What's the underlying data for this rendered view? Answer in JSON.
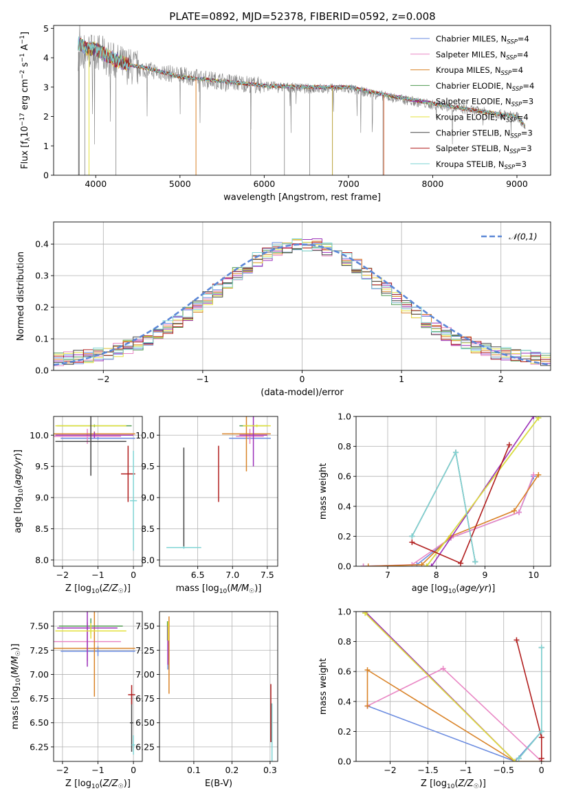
{
  "figure_title": "PLATE=0892, MJD=52378, FIBERID=0592, z=0.008",
  "models": [
    {
      "key": "chab_miles",
      "label": "Chabrier MILES, N",
      "sub": "SSP",
      "suffix": "=4",
      "color": "#6a8be0"
    },
    {
      "key": "salp_miles",
      "label": "Salpeter MILES, N",
      "sub": "SSP",
      "suffix": "=4",
      "color": "#e986c4"
    },
    {
      "key": "krou_miles",
      "label": "Kroupa MILES, N",
      "sub": "SSP",
      "suffix": "=4",
      "color": "#d98226"
    },
    {
      "key": "chab_elodie",
      "label": "Chabrier ELODIE, N",
      "sub": "SSP",
      "suffix": "=4",
      "color": "#4f9a50"
    },
    {
      "key": "salp_elodie",
      "label": "Salpeter ELODIE, N",
      "sub": "SSP",
      "suffix": "=3",
      "color": "#9a2fb8"
    },
    {
      "key": "krou_elodie",
      "label": "Kroupa ELODIE, N",
      "sub": "SSP",
      "suffix": "=4",
      "color": "#e3e13a"
    },
    {
      "key": "chab_stelib",
      "label": "Chabrier STELIB, N",
      "sub": "SSP",
      "suffix": "=3",
      "color": "#444444"
    },
    {
      "key": "salp_stelib",
      "label": "Salpeter STELIB, N",
      "sub": "SSP",
      "suffix": "=3",
      "color": "#b01c1c"
    },
    {
      "key": "krou_stelib",
      "label": "Kroupa STELIB, N",
      "sub": "SSP",
      "suffix": "=3",
      "color": "#7fd4d4"
    }
  ],
  "chart_data": [
    {
      "id": "spectrum",
      "type": "line",
      "xlabel": "wavelength [Angstrom, rest frame]",
      "ylabel": "Flux [f_λ 10^-17 erg cm^-2 s^-1 A^-1]",
      "xlim": [
        3500,
        9400
      ],
      "ylim": [
        0,
        5.1
      ],
      "xticks": [
        4000,
        5000,
        6000,
        7000,
        8000,
        9000
      ],
      "yticks": [
        0,
        1,
        2,
        3,
        4,
        5
      ],
      "data_color": "#808080",
      "data_continuum": {
        "x": [
          3800,
          4000,
          4200,
          4400,
          4600,
          5000,
          5500,
          6000,
          6500,
          7000,
          7500,
          8000,
          8500,
          9000,
          9100
        ],
        "y": [
          4.2,
          4.25,
          3.9,
          3.7,
          3.6,
          3.4,
          3.2,
          3.05,
          2.95,
          2.95,
          2.65,
          2.4,
          2.2,
          2.0,
          1.7
        ]
      },
      "model_continuum": {
        "x": [
          3790,
          3900,
          4000,
          4200,
          4400,
          4600,
          5000,
          5500,
          6000,
          6500,
          7000,
          7500,
          8000,
          8500,
          9000,
          9100
        ],
        "y": [
          4.5,
          4.3,
          4.3,
          3.95,
          3.75,
          3.65,
          3.35,
          3.2,
          3.05,
          3.0,
          3.0,
          2.7,
          2.45,
          2.2,
          2.0,
          1.7
        ]
      },
      "grid": false
    },
    {
      "id": "residuals",
      "type": "histogram",
      "xlabel": "(data-model)/error",
      "ylabel": "Normed distribution",
      "xlim": [
        -2.5,
        2.5
      ],
      "ylim": [
        0,
        0.47
      ],
      "xticks": [
        -2,
        -1,
        0,
        1,
        2
      ],
      "yticks": [
        0.0,
        0.1,
        0.2,
        0.3,
        0.4
      ],
      "bin_width": 0.1,
      "legend": {
        "label": "𝒩(0,1)",
        "color": "#5b87d6",
        "position": "top-right"
      },
      "grid": true
    },
    {
      "id": "age_vs_Z",
      "type": "errorbar",
      "xlabel": "Z [log₁₀(Z/Z☉)]",
      "ylabel": "age  [log₁₀(age/yr)]",
      "xlim": [
        -2.25,
        0.25
      ],
      "ylim": [
        7.9,
        10.3
      ],
      "xticks": [
        -2,
        -1,
        0
      ],
      "yticks": [
        8.0,
        8.5,
        9.0,
        9.5,
        10.0
      ],
      "grid": true,
      "points": [
        {
          "model": "chab_miles",
          "x": -1.0,
          "xerr": 1.05,
          "y": 9.95,
          "yerr": 0.02
        },
        {
          "model": "salp_miles",
          "x": -1.3,
          "xerr": 0.95,
          "y": 9.98,
          "yerr": 0.12
        },
        {
          "model": "krou_miles",
          "x": -1.1,
          "xerr": 1.15,
          "y": 10.02,
          "yerr": 0.04
        },
        {
          "model": "chab_elodie",
          "x": -1.1,
          "xerr": 1.05,
          "y": 10.15,
          "yerr": 0.02
        },
        {
          "model": "salp_elodie",
          "x": -1.1,
          "xerr": 1.1,
          "y": 10.0,
          "yerr": 0.05
        },
        {
          "model": "krou_elodie",
          "x": -1.2,
          "xerr": 1.0,
          "y": 10.15,
          "yerr": 0.02
        },
        {
          "model": "chab_stelib",
          "x": -1.2,
          "xerr": 1.0,
          "y": 9.9,
          "yerr": 0.55
        },
        {
          "model": "salp_stelib",
          "x": -0.15,
          "xerr": 0.2,
          "y": 9.38,
          "yerr": 0.45
        },
        {
          "model": "krou_stelib",
          "x": 0.0,
          "xerr": 0.1,
          "y": 8.95,
          "yerr": 0.8
        }
      ]
    },
    {
      "id": "age_vs_mass",
      "type": "errorbar",
      "xlabel": "mass [log₁₀(M/M☉)]",
      "ylabel": "",
      "xlim": [
        5.95,
        7.65
      ],
      "ylim": [
        7.9,
        10.3
      ],
      "xticks": [
        6.5,
        7.0,
        7.5
      ],
      "yticks": [
        8.0,
        8.5,
        9.0,
        9.5,
        10.0
      ],
      "grid": true,
      "points": [
        {
          "model": "chab_miles",
          "x": 7.25,
          "xerr": 0.3,
          "y": 9.95,
          "yerr": 0.02
        },
        {
          "model": "salp_miles",
          "x": 7.25,
          "xerr": 0.2,
          "y": 9.98,
          "yerr": 0.12
        },
        {
          "model": "krou_miles",
          "x": 7.2,
          "xerr": 0.35,
          "y": 10.02,
          "yerr": 0.6
        },
        {
          "model": "chab_elodie",
          "x": 7.3,
          "xerr": 0.2,
          "y": 10.15,
          "yerr": 0.02
        },
        {
          "model": "salp_elodie",
          "x": 7.3,
          "xerr": 0.2,
          "y": 10.0,
          "yerr": 0.5
        },
        {
          "model": "krou_elodie",
          "x": 7.35,
          "xerr": 0.2,
          "y": 10.15,
          "yerr": 0.02
        },
        {
          "model": "chab_stelib",
          "x": 6.3,
          "xerr": 0.0,
          "y": 9.0,
          "yerr": 0.8
        },
        {
          "model": "salp_stelib",
          "x": 6.8,
          "xerr": 0.0,
          "y": 9.38,
          "yerr": 0.45
        },
        {
          "model": "krou_stelib",
          "x": 6.3,
          "xerr": 0.25,
          "y": 8.2,
          "yerr": 0.02
        }
      ]
    },
    {
      "id": "weight_vs_age",
      "type": "line",
      "xlabel": "age  [log₁₀(age/yr)]",
      "ylabel": "mass weight",
      "xlim": [
        6.35,
        10.35
      ],
      "ylim": [
        0,
        1
      ],
      "xticks": [
        7,
        8,
        9,
        10
      ],
      "yticks": [
        0.0,
        0.2,
        0.4,
        0.6,
        0.8,
        1.0
      ],
      "grid": true,
      "series": [
        {
          "model": "chab_miles",
          "x": [
            6.5,
            7.6,
            8.3,
            9.7,
            10.0
          ],
          "y": [
            0.0,
            0.01,
            0.19,
            0.36,
            0.6
          ]
        },
        {
          "model": "salp_miles",
          "x": [
            6.5,
            7.5,
            8.3,
            9.7,
            10.0
          ],
          "y": [
            0.0,
            0.01,
            0.19,
            0.36,
            0.61
          ]
        },
        {
          "model": "krou_miles",
          "x": [
            6.6,
            7.7,
            8.3,
            9.6,
            10.1
          ],
          "y": [
            0.0,
            0.01,
            0.2,
            0.37,
            0.61
          ]
        },
        {
          "model": "chab_elodie",
          "x": [
            7.8,
            10.1
          ],
          "y": [
            0.0,
            0.99
          ]
        },
        {
          "model": "salp_elodie",
          "x": [
            7.9,
            10.0
          ],
          "y": [
            0.0,
            1.0
          ]
        },
        {
          "model": "krou_elodie",
          "x": [
            7.8,
            10.1
          ],
          "y": [
            0.0,
            0.99
          ]
        },
        {
          "model": "chab_stelib",
          "x": [
            7.5,
            8.4,
            8.8
          ],
          "y": [
            0.2,
            0.76,
            0.03
          ]
        },
        {
          "model": "salp_stelib",
          "x": [
            7.5,
            8.5,
            9.5
          ],
          "y": [
            0.16,
            0.02,
            0.81
          ]
        },
        {
          "model": "krou_stelib",
          "x": [
            7.5,
            8.4,
            8.8
          ],
          "y": [
            0.2,
            0.76,
            0.03
          ]
        }
      ]
    },
    {
      "id": "mass_vs_Z",
      "type": "errorbar",
      "xlabel": "Z [log₁₀(Z/Z☉)]",
      "ylabel": "mass [log₁₀(M/M☉)]",
      "xlim": [
        -2.25,
        0.25
      ],
      "ylim": [
        6.1,
        7.65
      ],
      "xticks": [
        -2,
        -1,
        0
      ],
      "yticks": [
        6.25,
        6.5,
        6.75,
        7.0,
        7.25,
        7.5
      ],
      "grid": true,
      "points": [
        {
          "model": "chab_miles",
          "x": -1.0,
          "xerr": 1.05,
          "y": 7.24,
          "yerr": 0.05
        },
        {
          "model": "salp_miles",
          "x": -1.3,
          "xerr": 0.95,
          "y": 7.34,
          "yerr": 0.2
        },
        {
          "model": "krou_miles",
          "x": -1.1,
          "xerr": 1.15,
          "y": 7.27,
          "yerr": 0.5
        },
        {
          "model": "chab_elodie",
          "x": -1.2,
          "xerr": 0.9,
          "y": 7.5,
          "yerr": 0.08
        },
        {
          "model": "salp_elodie",
          "x": -1.3,
          "xerr": 0.85,
          "y": 7.48,
          "yerr": 0.4
        },
        {
          "model": "krou_elodie",
          "x": -1.2,
          "xerr": 1.0,
          "y": 7.45,
          "yerr": 0.08
        },
        {
          "model": "chab_stelib",
          "x": -0.05,
          "xerr": 0.05,
          "y": 6.5,
          "yerr": 0.3
        },
        {
          "model": "salp_stelib",
          "x": -0.05,
          "xerr": 0.1,
          "y": 6.79,
          "yerr": 0.1
        },
        {
          "model": "krou_stelib",
          "x": 0.0,
          "xerr": 0.05,
          "y": 6.27,
          "yerr": 0.1
        }
      ]
    },
    {
      "id": "mass_vs_ebv",
      "type": "errorbar",
      "xlabel": "E(B-V)",
      "ylabel": "",
      "xlim": [
        0.01,
        0.32
      ],
      "ylim": [
        6.1,
        7.65
      ],
      "xticks": [
        0.1,
        0.2,
        0.3
      ],
      "yticks": [
        6.25,
        6.5,
        6.75,
        7.0,
        7.25,
        7.5
      ],
      "grid": true,
      "points": [
        {
          "model": "chab_miles",
          "x": 0.032,
          "xerr": 0.001,
          "y": 7.3,
          "yerr": 0.25
        },
        {
          "model": "salp_miles",
          "x": 0.033,
          "xerr": 0.001,
          "y": 7.35,
          "yerr": 0.2
        },
        {
          "model": "krou_miles",
          "x": 0.035,
          "xerr": 0.001,
          "y": 7.2,
          "yerr": 0.4
        },
        {
          "model": "chab_elodie",
          "x": 0.031,
          "xerr": 0.001,
          "y": 7.45,
          "yerr": 0.1
        },
        {
          "model": "salp_elodie",
          "x": 0.032,
          "xerr": 0.001,
          "y": 7.3,
          "yerr": 0.2
        },
        {
          "model": "krou_elodie",
          "x": 0.033,
          "xerr": 0.001,
          "y": 7.45,
          "yerr": 0.1
        },
        {
          "model": "chab_stelib",
          "x": 0.303,
          "xerr": 0.001,
          "y": 6.5,
          "yerr": 0.2
        },
        {
          "model": "salp_stelib",
          "x": 0.302,
          "xerr": 0.001,
          "y": 6.6,
          "yerr": 0.3
        },
        {
          "model": "krou_stelib",
          "x": 0.305,
          "xerr": 0.001,
          "y": 6.4,
          "yerr": 0.3
        }
      ]
    },
    {
      "id": "weight_vs_Z",
      "type": "line",
      "xlabel": "Z [log₁₀(Z/Z☉)]",
      "ylabel": "mass weight",
      "xlim": [
        -2.45,
        0.12
      ],
      "ylim": [
        0,
        1
      ],
      "xticks": [
        -2.0,
        -1.5,
        -1.0,
        -0.5,
        0.0
      ],
      "yticks": [
        0.0,
        0.2,
        0.4,
        0.6,
        0.8,
        1.0
      ],
      "grid": true,
      "series": [
        {
          "model": "chab_miles",
          "x": [
            -2.3,
            -0.35,
            0.0
          ],
          "y": [
            0.37,
            0.0,
            0.2
          ]
        },
        {
          "model": "salp_miles",
          "x": [
            -2.3,
            -1.3,
            0.0
          ],
          "y": [
            0.37,
            0.62,
            0.0
          ]
        },
        {
          "model": "krou_miles",
          "x": [
            -2.3,
            -2.3,
            -0.35,
            0.0
          ],
          "y": [
            0.37,
            0.61,
            0.0,
            0.0
          ]
        },
        {
          "model": "chab_elodie",
          "x": [
            -2.33,
            -0.35
          ],
          "y": [
            0.99,
            0.0
          ]
        },
        {
          "model": "salp_elodie",
          "x": [
            -2.33,
            -0.35
          ],
          "y": [
            1.0,
            0.0
          ]
        },
        {
          "model": "krou_elodie",
          "x": [
            -2.33,
            -0.35
          ],
          "y": [
            0.99,
            0.0
          ]
        },
        {
          "model": "chab_stelib",
          "x": [
            -0.3,
            0.0,
            0.0
          ],
          "y": [
            0.02,
            0.2,
            0.76
          ]
        },
        {
          "model": "salp_stelib",
          "x": [
            -0.33,
            0.0,
            0.0
          ],
          "y": [
            0.81,
            0.16,
            0.02
          ]
        },
        {
          "model": "krou_stelib",
          "x": [
            -0.3,
            0.0,
            0.0
          ],
          "y": [
            0.02,
            0.2,
            0.76
          ]
        }
      ]
    }
  ]
}
